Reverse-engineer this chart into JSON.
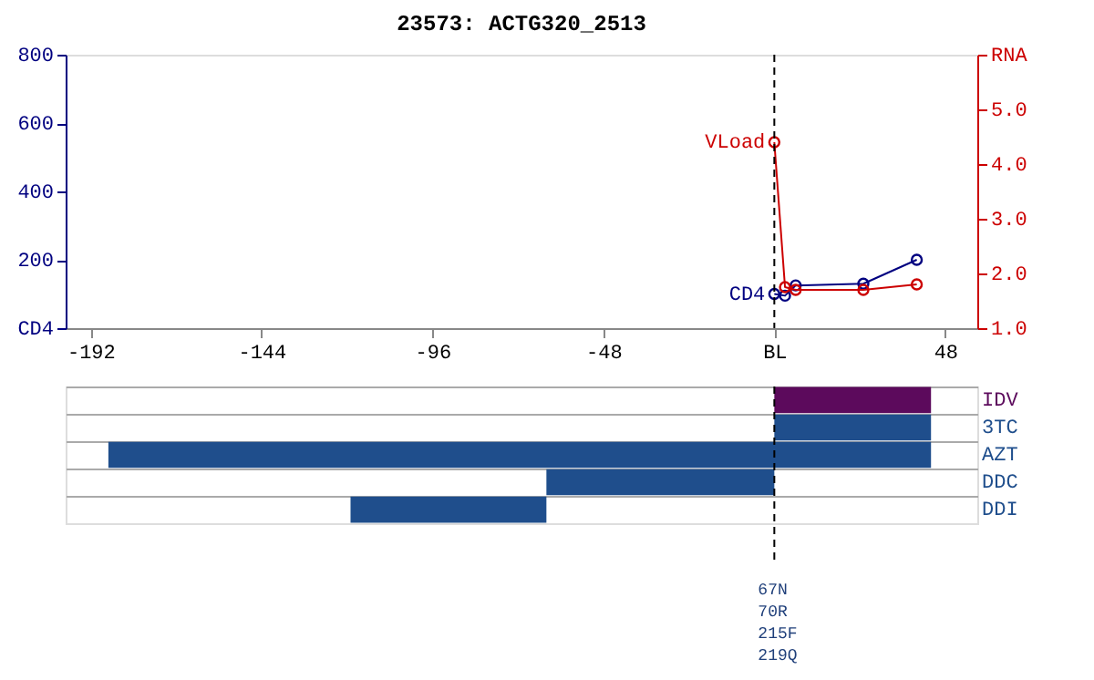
{
  "chart_data": [
    {
      "type": "line",
      "title": "23573: ACTG320_2513",
      "marker": "circle",
      "grid": false,
      "xlim": [
        -199,
        57
      ],
      "xticks": [
        -192,
        -144,
        -96,
        -48,
        {
          "value": 0,
          "label": "BL"
        },
        48
      ],
      "ylim": [
        0,
        800
      ],
      "yticks": [
        {
          "value": 0,
          "label": "CD4"
        },
        200,
        400,
        600,
        800
      ],
      "y2lim": [
        1,
        6
      ],
      "y2ticks": [
        {
          "value": 1,
          "label": "1.0"
        },
        {
          "value": 2,
          "label": "2.0"
        },
        {
          "value": 3,
          "label": "3.0"
        },
        {
          "value": 4,
          "label": "4.0"
        },
        {
          "value": 5,
          "label": "5.0"
        },
        {
          "value": 6,
          "label": "RNA"
        }
      ],
      "series": [
        {
          "name": "CD4",
          "color": "#000080",
          "x": [
            0,
            3,
            6,
            25,
            40
          ],
          "values": [
            100,
            95,
            125,
            130,
            200
          ]
        },
        {
          "name": "VLoad",
          "color": "#cc0000",
          "axis": "y2",
          "x": [
            0,
            3,
            6,
            25,
            40
          ],
          "values": [
            4.4,
            1.75,
            1.7,
            1.7,
            1.8
          ]
        }
      ],
      "ref_lines": [
        {
          "axis": "x",
          "value": 0,
          "line_style": "dashed",
          "color": "#000000"
        }
      ]
    },
    {
      "type": "bar",
      "orientation": "horizontal",
      "grid": "y",
      "tick_labels": "y",
      "xlim": [
        -199,
        57
      ],
      "categories": [
        "IDV",
        "3TC",
        "AZT",
        "DDC",
        "DDI"
      ],
      "base": [
        0,
        0,
        -187,
        -64,
        -119
      ],
      "values": [
        44,
        44,
        231,
        64,
        55
      ],
      "colors": [
        "#5c0a5c",
        "#1f4e8c",
        "#1f4e8c",
        "#1f4e8c",
        "#1f4e8c"
      ],
      "ref_lines": [
        {
          "axis": "x",
          "value": 0,
          "line_style": "dashed",
          "color": "#000000"
        }
      ],
      "annotations": [
        "67N",
        "70R",
        "215F",
        "219Q"
      ]
    }
  ]
}
